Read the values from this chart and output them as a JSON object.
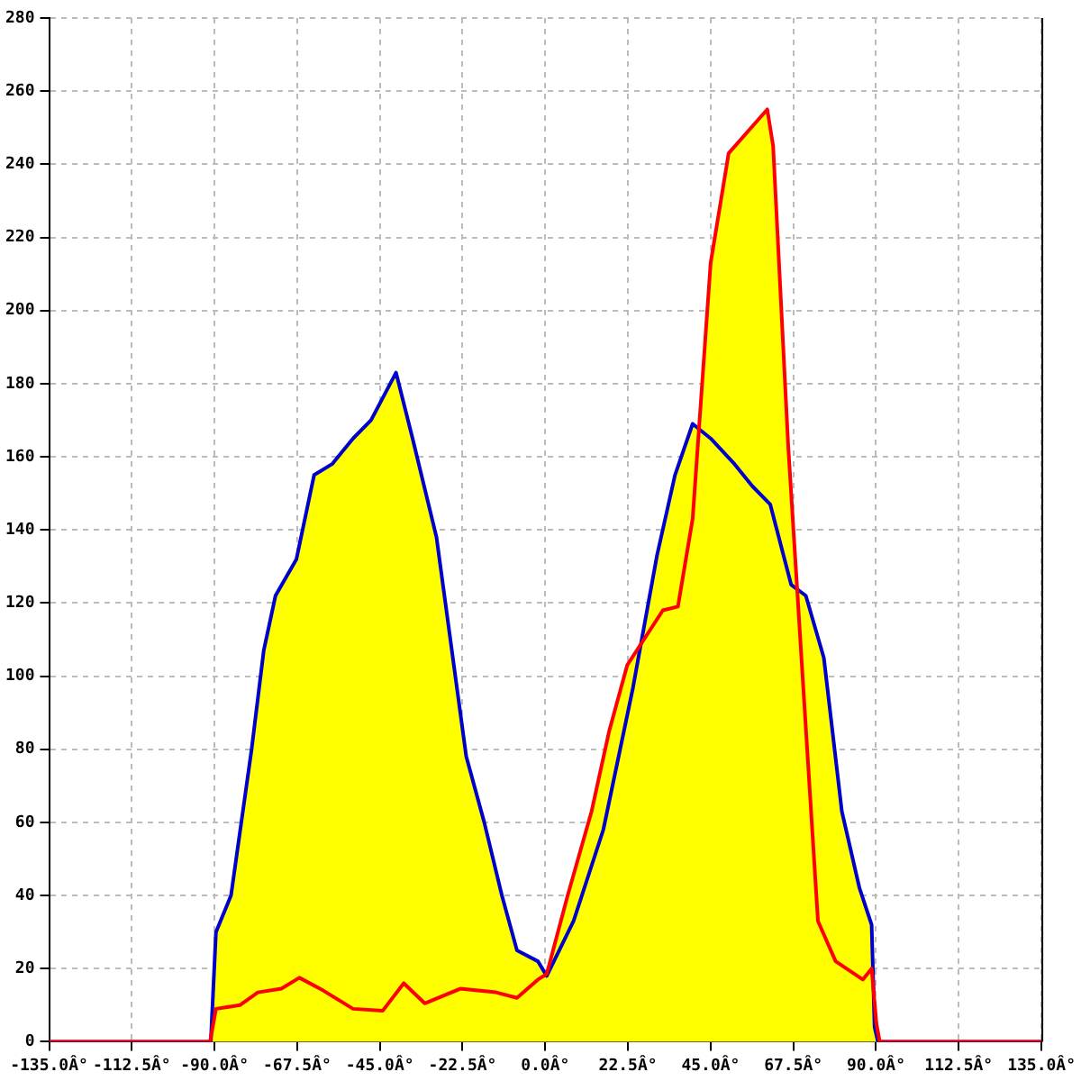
{
  "chart_data": {
    "type": "area",
    "color": "#ffff00",
    "grid": true,
    "marker": "none",
    "line_style": "solid",
    "legend": false,
    "xlim": [
      -135,
      135
    ],
    "ylim": [
      0,
      280
    ],
    "xticks": [
      {
        "value": -135,
        "label": "-135.0Â°"
      },
      {
        "value": -112.5,
        "label": "-112.5Â°"
      },
      {
        "value": -90,
        "label": "-90.0Â°"
      },
      {
        "value": -67.5,
        "label": "-67.5Â°"
      },
      {
        "value": -45,
        "label": "-45.0Â°"
      },
      {
        "value": -22.5,
        "label": "-22.5Â°"
      },
      {
        "value": 0,
        "label": "0.0Â°"
      },
      {
        "value": 22.5,
        "label": "22.5Â°"
      },
      {
        "value": 45,
        "label": "45.0Â°"
      },
      {
        "value": 67.5,
        "label": "67.5Â°"
      },
      {
        "value": 90,
        "label": "90.0Â°"
      },
      {
        "value": 112.5,
        "label": "112.5Â°"
      },
      {
        "value": 135,
        "label": "135.0Â°"
      }
    ],
    "yticks": [
      0,
      20,
      40,
      60,
      80,
      100,
      120,
      140,
      160,
      180,
      200,
      220,
      240,
      260,
      280
    ],
    "series": [
      {
        "type": "line",
        "color": "#0000cc",
        "x": [
          -135,
          -91,
          -89.6,
          -85.5,
          -79.9,
          -76.6,
          -73.4,
          -67.7,
          -62.9,
          -58,
          -52.3,
          -47.4,
          -40.6,
          -36.1,
          -29.6,
          -21.5,
          -16.6,
          -11.8,
          -7.7,
          -2,
          0.4,
          7.7,
          15.8,
          23.9,
          30.4,
          35.3,
          40.1,
          45,
          51.5,
          56.3,
          61.2,
          66.9,
          70.9,
          75.8,
          80.7,
          85.5,
          88.8,
          89.6,
          90.5,
          135
        ],
        "values": [
          0,
          0,
          30,
          40,
          80,
          107,
          122,
          132,
          155,
          158,
          165,
          170,
          183,
          165,
          138,
          78,
          60,
          40,
          25,
          22,
          18,
          33,
          58,
          97,
          133,
          155,
          169,
          165,
          158,
          152,
          147,
          125,
          122,
          105,
          63,
          42,
          32,
          4,
          0,
          0
        ]
      },
      {
        "type": "line",
        "color": "#ff0000",
        "x": [
          -135,
          -91.2,
          -89.6,
          -83.1,
          -78.2,
          -71.8,
          -66.9,
          -60.4,
          -52.3,
          -44.2,
          -38.5,
          -32.8,
          -23.1,
          -13.4,
          -7.7,
          -2,
          0.4,
          6.1,
          12.6,
          17.4,
          22.3,
          32,
          36.1,
          40.1,
          45,
          49.9,
          60.4,
          62,
          66.1,
          70.2,
          74.2,
          79,
          86.4,
          88.8,
          90.1,
          91,
          135
        ],
        "values": [
          0,
          0,
          9,
          10,
          13.5,
          14.5,
          17.5,
          14,
          9,
          8.5,
          16,
          10.5,
          14.5,
          13.5,
          12,
          17,
          18.5,
          40,
          63,
          85,
          103,
          118,
          119,
          143,
          213,
          243,
          255,
          245,
          163,
          97,
          33,
          22,
          17,
          20,
          5,
          0,
          0
        ]
      }
    ]
  }
}
